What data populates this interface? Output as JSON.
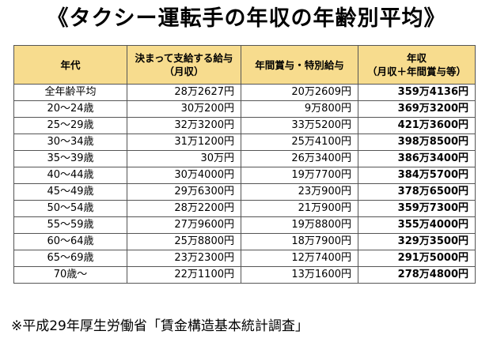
{
  "title": "《タクシー運転手の年収の年齢別平均》",
  "table": {
    "headers": {
      "age": [
        "年代"
      ],
      "monthly": [
        "決まって支給する給与",
        "（月収）"
      ],
      "bonus": [
        "年間賞与・特別給与"
      ],
      "annual": [
        "年収",
        "（月収＋年間賞与等）"
      ]
    },
    "rows": [
      {
        "age": "全年齢平均",
        "monthly": "28万2627円",
        "bonus": "20万2609円",
        "annual": "359万4136円"
      },
      {
        "age": "20～24歳",
        "monthly": "30万200円",
        "bonus": "9万800円",
        "annual": "369万3200円"
      },
      {
        "age": "25～29歳",
        "monthly": "32万3200円",
        "bonus": "33万5200円",
        "annual": "421万3600円"
      },
      {
        "age": "30～34歳",
        "monthly": "31万1200円",
        "bonus": "25万4100円",
        "annual": "398万8500円"
      },
      {
        "age": "35～39歳",
        "monthly": "30万円",
        "bonus": "26万3400円",
        "annual": "386万3400円"
      },
      {
        "age": "40～44歳",
        "monthly": "30万4000円",
        "bonus": "19万7700円",
        "annual": "384万5700円"
      },
      {
        "age": "45～49歳",
        "monthly": "29万6300円",
        "bonus": "23万900円",
        "annual": "378万6500円"
      },
      {
        "age": "50～54歳",
        "monthly": "28万2200円",
        "bonus": "21万900円",
        "annual": "359万7300円"
      },
      {
        "age": "55～59歳",
        "monthly": "27万9600円",
        "bonus": "19万8800円",
        "annual": "355万4000円"
      },
      {
        "age": "60～64歳",
        "monthly": "25万8800円",
        "bonus": "18万7900円",
        "annual": "329万3500円"
      },
      {
        "age": "65～69歳",
        "monthly": "23万2300円",
        "bonus": "12万7400円",
        "annual": "291万5000円"
      },
      {
        "age": "70歳～",
        "monthly": "22万1100円",
        "bonus": "13万1600円",
        "annual": "278万4800円"
      }
    ]
  },
  "footnote": "※平成29年厚生労働省「賃金構造基本統計調査」",
  "colors": {
    "header_background": "#f7dc8e",
    "border": "#555555"
  }
}
